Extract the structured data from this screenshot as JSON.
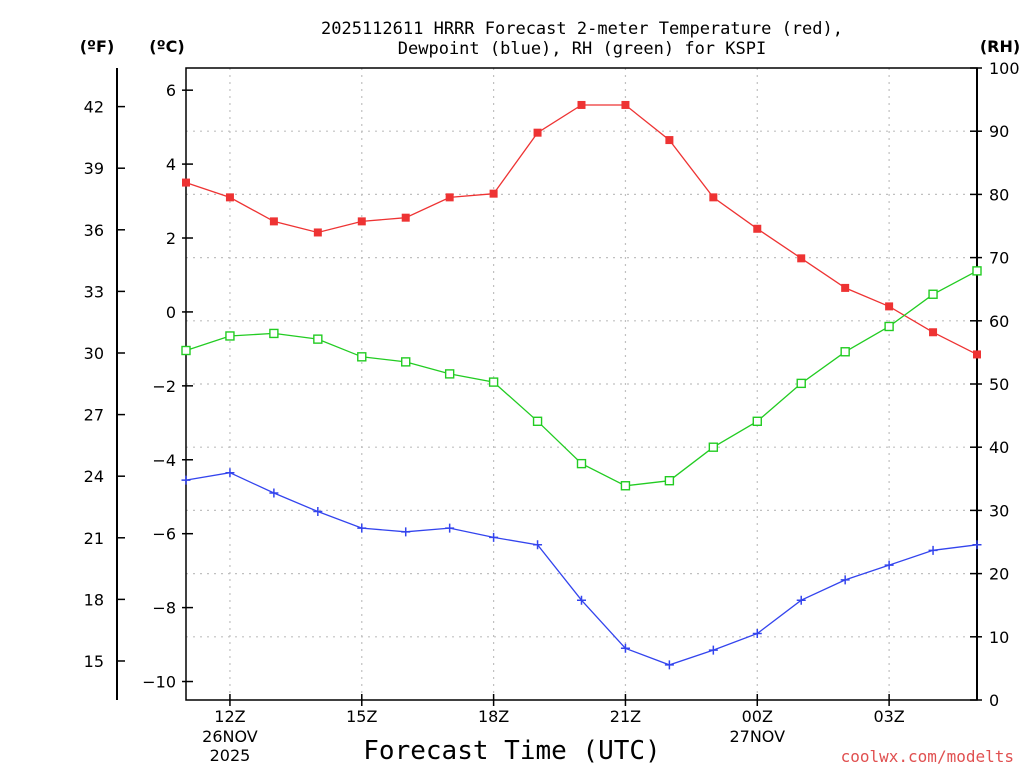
{
  "chart_data": {
    "type": "line",
    "title_lines": [
      "2025112611 HRRR Forecast 2-meter Temperature (red),",
      "Dewpoint (blue), RH (green) for KSPI"
    ],
    "units": {
      "fahrenheit": "(ºF)",
      "celsius": "(ºC)",
      "rh": "(RH)"
    },
    "xlabel": "Forecast Time (UTC)",
    "credit": "coolwx.com/modelts",
    "x_hours": [
      11,
      12,
      13,
      14,
      15,
      16,
      17,
      18,
      19,
      20,
      21,
      22,
      23,
      24,
      25,
      26,
      27,
      28,
      29
    ],
    "xlim": [
      11,
      29
    ],
    "x_ticks": [
      {
        "hour": 12,
        "label": "12Z",
        "date": "26NOV",
        "year": "2025"
      },
      {
        "hour": 15,
        "label": "15Z"
      },
      {
        "hour": 18,
        "label": "18Z"
      },
      {
        "hour": 21,
        "label": "21Z"
      },
      {
        "hour": 24,
        "label": "00Z",
        "date": "27NOV"
      },
      {
        "hour": 27,
        "label": "03Z"
      }
    ],
    "celsius_axis": {
      "ylim": [
        -10.5,
        6.6
      ],
      "ticks": [
        "6",
        "4",
        "2",
        "0",
        "−2",
        "−4",
        "−6",
        "−8",
        "−10"
      ],
      "tick_values": [
        6,
        4,
        2,
        0,
        -2,
        -4,
        -6,
        -8,
        -10
      ]
    },
    "fahrenheit_axis": {
      "ticks": [
        "42",
        "39",
        "36",
        "33",
        "30",
        "27",
        "24",
        "21",
        "18",
        "15"
      ],
      "tick_values": [
        42,
        39,
        36,
        33,
        30,
        27,
        24,
        21,
        18,
        15
      ]
    },
    "rh_axis": {
      "ylim": [
        0,
        100
      ],
      "ticks": [
        "100",
        "90",
        "80",
        "70",
        "60",
        "50",
        "40",
        "30",
        "20",
        "10",
        "0"
      ],
      "tick_values": [
        100,
        90,
        80,
        70,
        60,
        50,
        40,
        30,
        20,
        10,
        0
      ]
    },
    "series": [
      {
        "name": "Temperature",
        "axis": "celsius",
        "color": "#ee3333",
        "marker": "filled-square",
        "values": [
          3.5,
          3.1,
          2.45,
          2.15,
          2.45,
          2.55,
          3.1,
          3.2,
          4.85,
          5.6,
          5.6,
          4.65,
          3.1,
          2.25,
          1.45,
          0.65,
          0.15,
          -0.55,
          -1.15
        ]
      },
      {
        "name": "Dewpoint",
        "axis": "celsius",
        "color": "#3344ee",
        "marker": "plus",
        "values": [
          -4.55,
          -4.35,
          -4.9,
          -5.4,
          -5.85,
          -5.95,
          -5.85,
          -6.1,
          -6.3,
          -7.8,
          -9.1,
          -9.55,
          -9.15,
          -8.7,
          -7.8,
          -7.25,
          -6.85,
          -6.45,
          -6.3
        ]
      },
      {
        "name": "RH",
        "axis": "rh",
        "color": "#22cc22",
        "marker": "open-square",
        "values": [
          55.3,
          57.6,
          58.0,
          57.1,
          54.3,
          53.5,
          51.6,
          50.3,
          44.1,
          37.4,
          33.9,
          34.7,
          40.0,
          44.1,
          50.1,
          55.1,
          59.1,
          64.2,
          67.9
        ]
      }
    ]
  }
}
